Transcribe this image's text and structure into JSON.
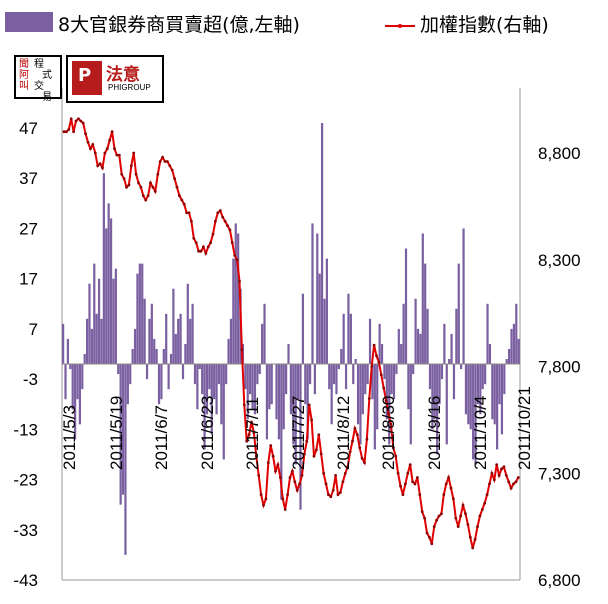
{
  "chart_data": {
    "type": "bar+line",
    "series": [
      {
        "name": "8大官銀券商買賣超(億,左軸)",
        "type": "bar",
        "axis": "left",
        "color": "#7a60a0",
        "values": [
          8,
          -7,
          5,
          -1,
          -9,
          -15,
          -7,
          -12,
          -5,
          2,
          9,
          16,
          7,
          20,
          10,
          17,
          9,
          38,
          27,
          32,
          29,
          17,
          19,
          -2,
          -28,
          -26,
          -38,
          -8,
          -4,
          3,
          7,
          18,
          20,
          20,
          13,
          -3,
          9,
          12,
          5,
          3,
          -8,
          -7,
          3,
          10,
          -5,
          2,
          15,
          6,
          9,
          10,
          -3,
          4,
          16,
          9,
          12,
          -4,
          -9,
          -1,
          -6,
          -17,
          -10,
          -5,
          -14,
          -7,
          -10,
          -4,
          -12,
          -19,
          -4,
          5,
          9,
          21,
          28,
          26,
          15,
          4,
          -5,
          -11,
          -6,
          -9,
          -10,
          -4,
          -2,
          8,
          12,
          -15,
          -9,
          -8,
          0,
          -11,
          -15,
          -27,
          -13,
          -6,
          4,
          -10,
          -16,
          -20,
          -7,
          -29,
          14,
          -8,
          -15,
          -4,
          28,
          -6,
          26,
          18,
          48,
          13,
          21,
          -5,
          -12,
          -4,
          -6,
          -1,
          3,
          10,
          -5,
          14,
          10,
          -4,
          1,
          -12,
          -16,
          -10,
          -6,
          -4,
          9,
          -7,
          -17,
          -13,
          8,
          4,
          -3,
          -11,
          -16,
          -6,
          -7,
          -2,
          7,
          4,
          12,
          23,
          -9,
          -16,
          -2,
          13,
          7,
          6,
          26,
          20,
          11,
          -5,
          -13,
          -11,
          -18,
          -8,
          -3,
          8,
          -16,
          1,
          6,
          -7,
          11,
          20,
          -1,
          27,
          -10,
          -12,
          -13,
          -19,
          -20,
          -8,
          -10,
          -5,
          -4,
          12,
          4,
          -11,
          -12,
          -17,
          -8,
          -14,
          -6,
          1,
          3,
          7,
          8,
          12,
          5
        ]
      },
      {
        "name": "加權指數(右軸)",
        "type": "line",
        "axis": "right",
        "color": "#e00000",
        "values": [
          8900,
          8900,
          8910,
          8960,
          8900,
          8950,
          8960,
          8950,
          8940,
          8890,
          8850,
          8820,
          8840,
          8800,
          8740,
          8750,
          8730,
          8800,
          8820,
          8860,
          8900,
          8820,
          8790,
          8790,
          8700,
          8680,
          8640,
          8650,
          8740,
          8800,
          8700,
          8660,
          8640,
          8600,
          8580,
          8600,
          8660,
          8640,
          8620,
          8700,
          8760,
          8780,
          8760,
          8760,
          8740,
          8720,
          8680,
          8640,
          8600,
          8580,
          8560,
          8520,
          8520,
          8480,
          8400,
          8380,
          8340,
          8340,
          8360,
          8330,
          8360,
          8380,
          8420,
          8480,
          8520,
          8530,
          8500,
          8480,
          8460,
          8440,
          8380,
          8320,
          8300,
          8200,
          7880,
          7620,
          7450,
          7480,
          7540,
          7490,
          7380,
          7290,
          7200,
          7150,
          7180,
          7350,
          7430,
          7380,
          7310,
          7340,
          7280,
          7180,
          7130,
          7200,
          7280,
          7310,
          7260,
          7220,
          7250,
          7290,
          7390,
          7450,
          7620,
          7550,
          7380,
          7410,
          7480,
          7390,
          7300,
          7250,
          7200,
          7190,
          7220,
          7290,
          7200,
          7210,
          7260,
          7300,
          7330,
          7400,
          7450,
          7510,
          7480,
          7420,
          7370,
          7350,
          7460,
          7650,
          7800,
          7900,
          7850,
          7820,
          7760,
          7700,
          7640,
          7580,
          7530,
          7420,
          7380,
          7300,
          7240,
          7200,
          7250,
          7300,
          7340,
          7260,
          7250,
          7280,
          7200,
          7120,
          7090,
          7020,
          7000,
          6970,
          7050,
          7080,
          7100,
          7110,
          7200,
          7250,
          7280,
          7230,
          7180,
          7090,
          7050,
          7100,
          7150,
          7110,
          7060,
          7000,
          6950,
          6990,
          7050,
          7100,
          7130,
          7160,
          7200,
          7250,
          7300,
          7270,
          7340,
          7290,
          7320,
          7330,
          7290,
          7260,
          7230,
          7250,
          7260,
          7280
        ]
      }
    ],
    "x_tick_labels": [
      "2011/5/3",
      "2011/5/19",
      "2011/6/7",
      "2011/6/23",
      "2011/7/11",
      "2011/7/27",
      "2011/8/12",
      "2011/8/30",
      "2011/9/16",
      "2011/10/4",
      "2011/10/21"
    ],
    "y_left": {
      "ticks": [
        "47",
        "37",
        "27",
        "17",
        "7",
        "-3",
        "-13",
        "-23",
        "-33",
        "-43"
      ],
      "range": [
        -43,
        57
      ]
    },
    "y_right": {
      "ticks": [
        "8,800",
        "8,300",
        "7,800",
        "7,300",
        "6,800"
      ],
      "range": [
        6800,
        9150
      ]
    },
    "grid": false,
    "legend_position": "top",
    "logos": {
      "logo1_text": [
        "聞",
        "程",
        "阿",
        "式",
        "叫",
        "交",
        "易"
      ],
      "logo2_name": "法意",
      "logo2_sub": "PHIGROUP",
      "logo2_mark": "P"
    }
  }
}
